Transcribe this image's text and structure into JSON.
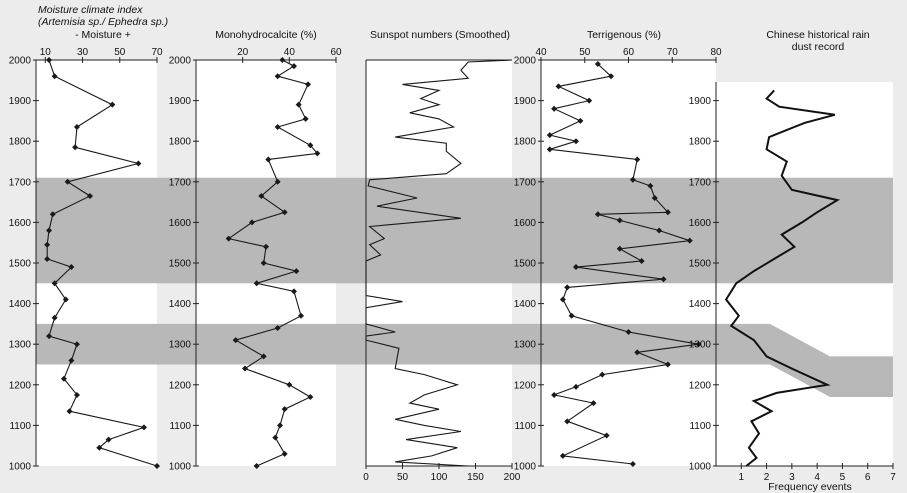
{
  "chart_data": [
    {
      "type": "line",
      "title_line1": "Moisture climate index",
      "title_line2": "(Artemisia sp./ Ephedra sp.)",
      "title_line3": "- Moisture +",
      "xlim": [
        5,
        70
      ],
      "xticks": [
        10,
        30,
        50,
        70
      ],
      "ylim": [
        1000,
        2000
      ],
      "yticks": [
        1000,
        1100,
        1200,
        1300,
        1400,
        1500,
        1600,
        1700,
        1800,
        1900,
        2000
      ],
      "markers": true,
      "points": [
        {
          "x": 12,
          "y": 2000
        },
        {
          "x": 15,
          "y": 1960
        },
        {
          "x": 46,
          "y": 1890
        },
        {
          "x": 27,
          "y": 1835
        },
        {
          "x": 26,
          "y": 1785
        },
        {
          "x": 60,
          "y": 1745
        },
        {
          "x": 22,
          "y": 1700
        },
        {
          "x": 34,
          "y": 1665
        },
        {
          "x": 14,
          "y": 1620
        },
        {
          "x": 12,
          "y": 1580
        },
        {
          "x": 11,
          "y": 1545
        },
        {
          "x": 11,
          "y": 1510
        },
        {
          "x": 24,
          "y": 1490
        },
        {
          "x": 15,
          "y": 1450
        },
        {
          "x": 21,
          "y": 1410
        },
        {
          "x": 15,
          "y": 1365
        },
        {
          "x": 12,
          "y": 1320
        },
        {
          "x": 27,
          "y": 1300
        },
        {
          "x": 24,
          "y": 1260
        },
        {
          "x": 20,
          "y": 1215
        },
        {
          "x": 27,
          "y": 1175
        },
        {
          "x": 23,
          "y": 1135
        },
        {
          "x": 63,
          "y": 1095
        },
        {
          "x": 44,
          "y": 1065
        },
        {
          "x": 39,
          "y": 1045
        },
        {
          "x": 70,
          "y": 1000
        }
      ]
    },
    {
      "type": "line",
      "title": "Monohydrocalcite (%)",
      "xlim": [
        0,
        60
      ],
      "xticks": [
        20,
        40,
        60
      ],
      "ylim": [
        1000,
        2000
      ],
      "yticks": [
        1000,
        1100,
        1200,
        1300,
        1400,
        1500,
        1600,
        1700,
        1800,
        1900,
        2000
      ],
      "markers": true,
      "points": [
        {
          "x": 37,
          "y": 2000
        },
        {
          "x": 42,
          "y": 1985
        },
        {
          "x": 35,
          "y": 1960
        },
        {
          "x": 48,
          "y": 1940
        },
        {
          "x": 44,
          "y": 1890
        },
        {
          "x": 47,
          "y": 1855
        },
        {
          "x": 35,
          "y": 1835
        },
        {
          "x": 49,
          "y": 1790
        },
        {
          "x": 52,
          "y": 1770
        },
        {
          "x": 31,
          "y": 1755
        },
        {
          "x": 35,
          "y": 1700
        },
        {
          "x": 28,
          "y": 1665
        },
        {
          "x": 38,
          "y": 1625
        },
        {
          "x": 24,
          "y": 1600
        },
        {
          "x": 14,
          "y": 1560
        },
        {
          "x": 30,
          "y": 1540
        },
        {
          "x": 29,
          "y": 1500
        },
        {
          "x": 43,
          "y": 1480
        },
        {
          "x": 26,
          "y": 1450
        },
        {
          "x": 42,
          "y": 1430
        },
        {
          "x": 45,
          "y": 1370
        },
        {
          "x": 35,
          "y": 1340
        },
        {
          "x": 17,
          "y": 1310
        },
        {
          "x": 29,
          "y": 1270
        },
        {
          "x": 21,
          "y": 1240
        },
        {
          "x": 40,
          "y": 1200
        },
        {
          "x": 49,
          "y": 1170
        },
        {
          "x": 38,
          "y": 1140
        },
        {
          "x": 36,
          "y": 1100
        },
        {
          "x": 34,
          "y": 1070
        },
        {
          "x": 38,
          "y": 1030
        },
        {
          "x": 26,
          "y": 1000
        }
      ]
    },
    {
      "type": "line",
      "title": "Sunspot numbers (Smoothed)",
      "xlim": [
        0,
        200
      ],
      "xticks": [
        0,
        50,
        100,
        150,
        200
      ],
      "ylim": [
        1000,
        2000
      ],
      "markers": false,
      "points": [
        {
          "x": 200,
          "y": 2000
        },
        {
          "x": 140,
          "y": 1995
        },
        {
          "x": 130,
          "y": 1975
        },
        {
          "x": 140,
          "y": 1955
        },
        {
          "x": 50,
          "y": 1940
        },
        {
          "x": 100,
          "y": 1925
        },
        {
          "x": 75,
          "y": 1905
        },
        {
          "x": 100,
          "y": 1890
        },
        {
          "x": 60,
          "y": 1870
        },
        {
          "x": 100,
          "y": 1855
        },
        {
          "x": 120,
          "y": 1835
        },
        {
          "x": 40,
          "y": 1810
        },
        {
          "x": 110,
          "y": 1795
        },
        {
          "x": 110,
          "y": 1775
        },
        {
          "x": 130,
          "y": 1745
        },
        {
          "x": 110,
          "y": 1720
        },
        {
          "x": 5,
          "y": 1705
        },
        {
          "x": 3,
          "y": 1690
        },
        {
          "x": 70,
          "y": 1660
        },
        {
          "x": 15,
          "y": 1640
        },
        {
          "x": 130,
          "y": 1610
        },
        {
          "x": 5,
          "y": 1590
        },
        {
          "x": 25,
          "y": 1560
        },
        {
          "x": 5,
          "y": 1545
        },
        {
          "x": 20,
          "y": 1520
        },
        {
          "x": 0,
          "y": 1505
        },
        {
          "x": 0,
          "y": 1420
        },
        {
          "x": 50,
          "y": 1405
        },
        {
          "x": 0,
          "y": 1390
        },
        {
          "x": 0,
          "y": 1350
        },
        {
          "x": 40,
          "y": 1330
        },
        {
          "x": 0,
          "y": 1320
        },
        {
          "x": 0,
          "y": 1310
        },
        {
          "x": 45,
          "y": 1290
        },
        {
          "x": 40,
          "y": 1240
        },
        {
          "x": 80,
          "y": 1225
        },
        {
          "x": 125,
          "y": 1200
        },
        {
          "x": 80,
          "y": 1175
        },
        {
          "x": 60,
          "y": 1155
        },
        {
          "x": 100,
          "y": 1140
        },
        {
          "x": 40,
          "y": 1115
        },
        {
          "x": 80,
          "y": 1100
        },
        {
          "x": 130,
          "y": 1085
        },
        {
          "x": 55,
          "y": 1065
        },
        {
          "x": 125,
          "y": 1045
        },
        {
          "x": 90,
          "y": 1025
        },
        {
          "x": 40,
          "y": 1010
        },
        {
          "x": 140,
          "y": 1000
        }
      ]
    },
    {
      "type": "line",
      "title": "Terrigenous (%)",
      "xlim": [
        40,
        80
      ],
      "xticks": [
        40,
        50,
        60,
        70,
        80
      ],
      "ylim": [
        1000,
        2000
      ],
      "yticks": [
        1000,
        1100,
        1200,
        1300,
        1400,
        1500,
        1600,
        1700,
        1800,
        1900,
        2000
      ],
      "markers": true,
      "points": [
        {
          "x": 53,
          "y": 1990
        },
        {
          "x": 56,
          "y": 1960
        },
        {
          "x": 44,
          "y": 1935
        },
        {
          "x": 51,
          "y": 1900
        },
        {
          "x": 43,
          "y": 1880
        },
        {
          "x": 49,
          "y": 1850
        },
        {
          "x": 42,
          "y": 1815
        },
        {
          "x": 48,
          "y": 1800
        },
        {
          "x": 42,
          "y": 1780
        },
        {
          "x": 62,
          "y": 1755
        },
        {
          "x": 61,
          "y": 1705
        },
        {
          "x": 65,
          "y": 1690
        },
        {
          "x": 66,
          "y": 1660
        },
        {
          "x": 69,
          "y": 1625
        },
        {
          "x": 53,
          "y": 1620
        },
        {
          "x": 58,
          "y": 1605
        },
        {
          "x": 67,
          "y": 1580
        },
        {
          "x": 74,
          "y": 1555
        },
        {
          "x": 58,
          "y": 1535
        },
        {
          "x": 63,
          "y": 1505
        },
        {
          "x": 48,
          "y": 1490
        },
        {
          "x": 68,
          "y": 1460
        },
        {
          "x": 46,
          "y": 1440
        },
        {
          "x": 45,
          "y": 1410
        },
        {
          "x": 47,
          "y": 1370
        },
        {
          "x": 60,
          "y": 1330
        },
        {
          "x": 76,
          "y": 1300
        },
        {
          "x": 62,
          "y": 1280
        },
        {
          "x": 69,
          "y": 1250
        },
        {
          "x": 54,
          "y": 1225
        },
        {
          "x": 48,
          "y": 1195
        },
        {
          "x": 43,
          "y": 1175
        },
        {
          "x": 52,
          "y": 1155
        },
        {
          "x": 46,
          "y": 1110
        },
        {
          "x": 55,
          "y": 1075
        },
        {
          "x": 45,
          "y": 1025
        },
        {
          "x": 61,
          "y": 1005
        }
      ]
    },
    {
      "type": "line",
      "title_line1": "Chinese historical rain",
      "title_line2": "dust record",
      "xlabel": "Frequency events",
      "xlim": [
        0,
        7
      ],
      "xticks": [
        1,
        2,
        3,
        4,
        5,
        6,
        7
      ],
      "ylim": [
        1000,
        2000
      ],
      "yticks": [
        1000,
        1100,
        1200,
        1300,
        1400,
        1500,
        1600,
        1700,
        1800,
        1900
      ],
      "markers": false,
      "points": [
        {
          "x": 1.2,
          "y": 1000
        },
        {
          "x": 1.6,
          "y": 1020
        },
        {
          "x": 1.3,
          "y": 1045
        },
        {
          "x": 1.7,
          "y": 1080
        },
        {
          "x": 1.4,
          "y": 1110
        },
        {
          "x": 2.2,
          "y": 1135
        },
        {
          "x": 1.5,
          "y": 1160
        },
        {
          "x": 2.4,
          "y": 1180
        },
        {
          "x": 4.4,
          "y": 1200
        },
        {
          "x": 3.0,
          "y": 1240
        },
        {
          "x": 2.0,
          "y": 1270
        },
        {
          "x": 1.5,
          "y": 1310
        },
        {
          "x": 0.6,
          "y": 1345
        },
        {
          "x": 0.9,
          "y": 1370
        },
        {
          "x": 0.4,
          "y": 1410
        },
        {
          "x": 0.8,
          "y": 1450
        },
        {
          "x": 1.5,
          "y": 1480
        },
        {
          "x": 2.3,
          "y": 1510
        },
        {
          "x": 3.1,
          "y": 1540
        },
        {
          "x": 2.6,
          "y": 1570
        },
        {
          "x": 3.4,
          "y": 1600
        },
        {
          "x": 4.0,
          "y": 1625
        },
        {
          "x": 4.8,
          "y": 1655
        },
        {
          "x": 3.0,
          "y": 1680
        },
        {
          "x": 2.6,
          "y": 1715
        },
        {
          "x": 2.8,
          "y": 1750
        },
        {
          "x": 2.0,
          "y": 1780
        },
        {
          "x": 2.1,
          "y": 1810
        },
        {
          "x": 3.5,
          "y": 1845
        },
        {
          "x": 4.7,
          "y": 1865
        },
        {
          "x": 2.5,
          "y": 1885
        },
        {
          "x": 2.0,
          "y": 1905
        },
        {
          "x": 2.3,
          "y": 1925
        }
      ]
    }
  ],
  "shaded_bands": [
    {
      "y_from": 1450,
      "y_to": 1710
    },
    {
      "y_from": 1250,
      "y_to": 1350
    }
  ]
}
